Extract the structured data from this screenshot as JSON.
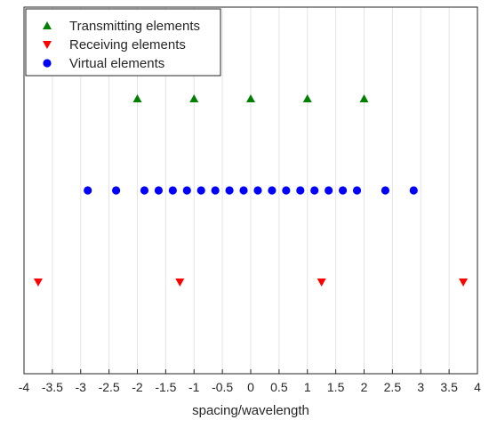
{
  "chart_data": {
    "type": "scatter",
    "title": "",
    "xlabel": "spacing/wavelength",
    "ylabel": "",
    "xlim": [
      -4,
      4
    ],
    "ylim": [
      0,
      4
    ],
    "grid": "vertical",
    "legend_position": "top-left",
    "x_ticks": [
      "-4",
      "-3.5",
      "-3",
      "-2.5",
      "-2",
      "-1.5",
      "-1",
      "-0.5",
      "0",
      "0.5",
      "1",
      "1.5",
      "2",
      "2.5",
      "3",
      "3.5",
      "4"
    ],
    "series": [
      {
        "name": "Transmitting elements",
        "marker": "triangle-up",
        "color": "#008000",
        "x": [
          -2,
          -1,
          0,
          1,
          2
        ],
        "y": [
          3,
          3,
          3,
          3,
          3
        ]
      },
      {
        "name": "Receiving elements",
        "marker": "triangle-down",
        "color": "#ff0000",
        "x": [
          -3.75,
          -1.25,
          1.25,
          3.75
        ],
        "y": [
          1,
          1,
          1,
          1
        ]
      },
      {
        "name": "Virtual elements",
        "marker": "circle",
        "color": "#0000ff",
        "x": [
          -2.875,
          -2.375,
          -1.875,
          -1.625,
          -1.375,
          -1.125,
          -0.875,
          -0.625,
          -0.375,
          -0.125,
          0.125,
          0.375,
          0.625,
          0.875,
          1.125,
          1.375,
          1.625,
          1.875,
          2.375,
          2.875
        ],
        "y": [
          2,
          2,
          2,
          2,
          2,
          2,
          2,
          2,
          2,
          2,
          2,
          2,
          2,
          2,
          2,
          2,
          2,
          2,
          2,
          2
        ]
      }
    ]
  }
}
